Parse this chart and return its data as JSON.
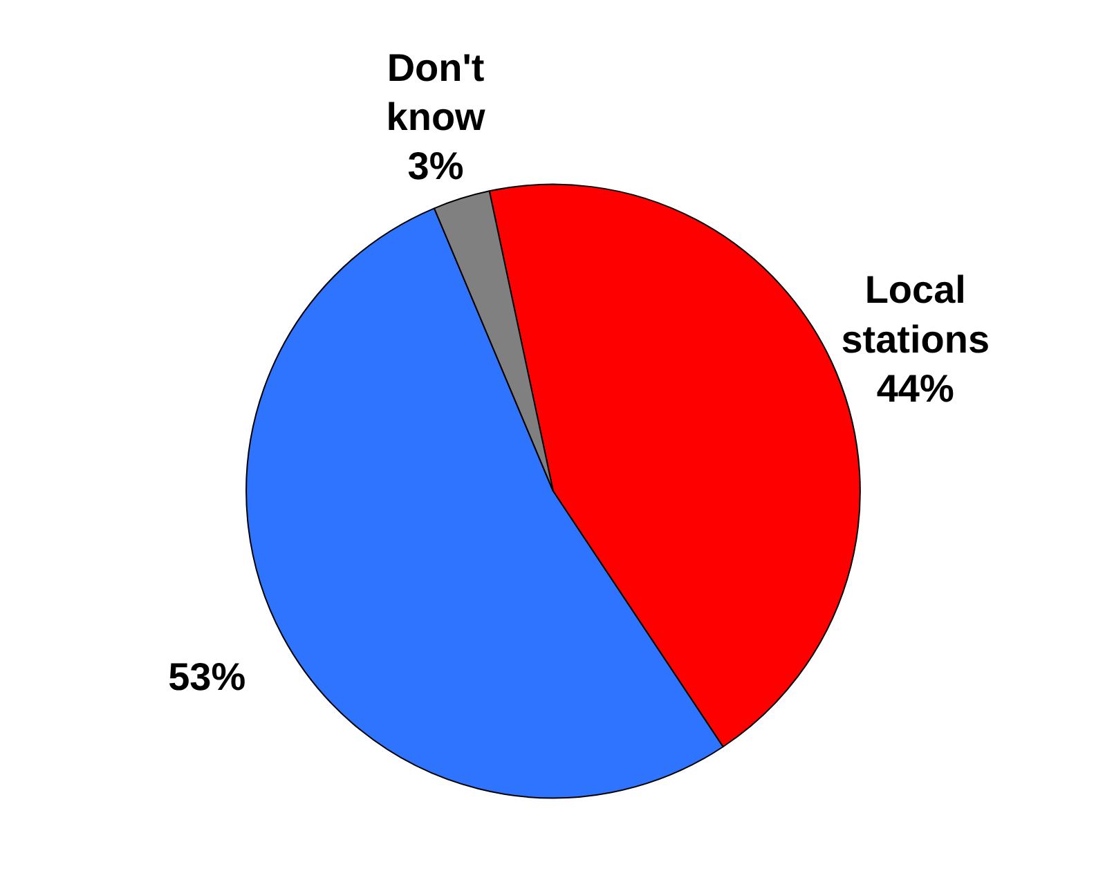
{
  "chart_data": {
    "type": "pie",
    "categories": [
      "Local stations",
      null,
      "Don't know"
    ],
    "values": [
      44,
      53,
      3
    ],
    "colors": [
      "#ff0000",
      "#2f74ff",
      "#808080"
    ],
    "value_labels": [
      "44%",
      "53%",
      "3%"
    ]
  }
}
